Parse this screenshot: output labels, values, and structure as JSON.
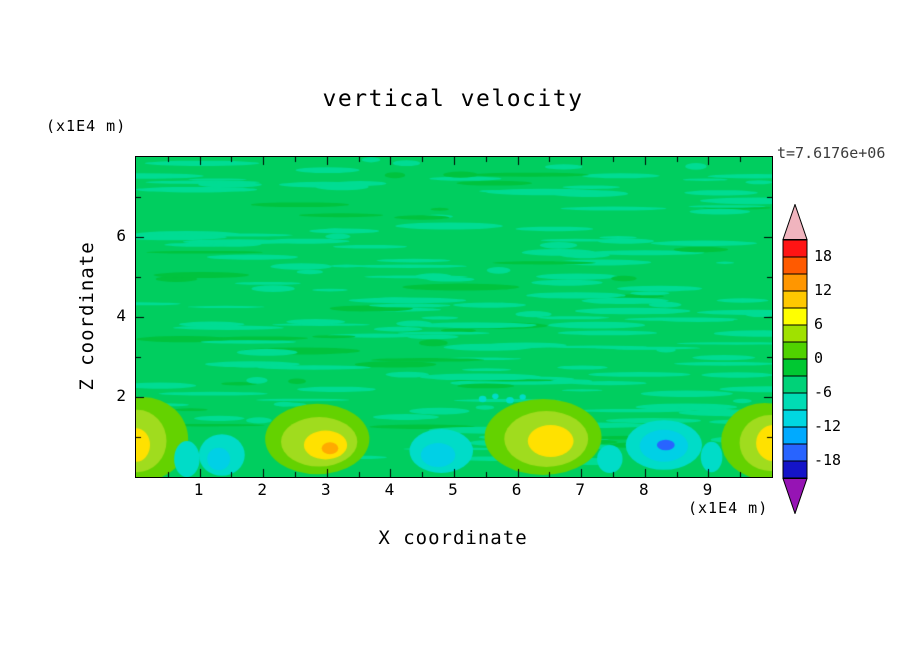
{
  "title": "vertical velocity",
  "time_label": "t=7.6176e+06",
  "axes": {
    "x_label": "X coordinate",
    "x_unit": "(x1E4 m)",
    "y_label": "Z coordinate",
    "y_unit": "(x1E4 m)",
    "x_ticks": [
      1,
      2,
      3,
      4,
      5,
      6,
      7,
      8,
      9
    ],
    "y_ticks": [
      2,
      4,
      6
    ]
  },
  "colorbar": {
    "labels": [
      "18",
      "12",
      "6",
      "0",
      "-6",
      "-12",
      "-18"
    ],
    "cell_colors_top_to_bottom": [
      "#ff1414",
      "#ff5a00",
      "#ff9600",
      "#ffc800",
      "#ffff00",
      "#a0e100",
      "#50d200",
      "#00c832",
      "#00d278",
      "#00dcb4",
      "#00d7e1",
      "#00aaff",
      "#2864ff",
      "#1414c8"
    ],
    "top_arrow_color": "#f0b4be",
    "bottom_arrow_color": "#9614b4",
    "cell_value_step": 3,
    "value_range": [
      -21,
      21
    ]
  },
  "chart_data": {
    "type": "heatmap",
    "title": "vertical velocity",
    "xlabel": "X coordinate (x1E4 m)",
    "ylabel": "Z coordinate (x1E4 m)",
    "time_annotation": "t=7.6176e+06",
    "x_range": [
      0,
      10
    ],
    "z_range": [
      0,
      8
    ],
    "contour_levels": [
      -21,
      -18,
      -15,
      -12,
      -9,
      -6,
      -3,
      0,
      3,
      6,
      9,
      12,
      15,
      18,
      21
    ],
    "palette_low_to_high": [
      "#1414c8",
      "#2864ff",
      "#00aaff",
      "#00d7e1",
      "#00dcb4",
      "#00d278",
      "#00c832",
      "#50d200",
      "#a0e100",
      "#ffff00",
      "#ffc800",
      "#ff9600",
      "#ff5a00",
      "#ff1414"
    ],
    "field_summary": "Mostly near-zero (green, -3 to +3) with fine horizontal streaky texture above z=2; below z=2 a convective boundary layer with updraft plumes (yellow-green/yellow, +3 to +9, orange core +9 to +12 near x=3) at x=0, 3, 6.5 and 9.9, and downdrafts (aquamarine/cyan, -3 to -9) at x=0.8, 1.3, 4.8, 7.5, 9.05 with a blue core near -15 at x=8.3",
    "texture": {
      "seed": 7,
      "count": 210,
      "base": "#00ce5f",
      "color": "#00dc93",
      "alt_color": "#00c33e"
    },
    "features": [
      {
        "x": 0.1,
        "z": 0.95,
        "rx": 0.72,
        "rz": 1.05,
        "color": "#64d200"
      },
      {
        "x": 0.02,
        "z": 0.9,
        "rx": 0.46,
        "rz": 0.78,
        "color": "#a0dc1e"
      },
      {
        "x": 0.0,
        "z": 0.8,
        "rx": 0.22,
        "rz": 0.42,
        "color": "#ffe100"
      },
      {
        "x": 0.8,
        "z": 0.45,
        "rx": 0.2,
        "rz": 0.45,
        "color": "#00dcc8"
      },
      {
        "x": 1.35,
        "z": 0.55,
        "rx": 0.36,
        "rz": 0.52,
        "color": "#00dcc8"
      },
      {
        "x": 1.3,
        "z": 0.45,
        "rx": 0.18,
        "rz": 0.28,
        "color": "#00d0e6"
      },
      {
        "x": 2.85,
        "z": 0.95,
        "rx": 0.82,
        "rz": 0.88,
        "color": "#64d200"
      },
      {
        "x": 2.88,
        "z": 0.88,
        "rx": 0.6,
        "rz": 0.62,
        "color": "#a0dc1e"
      },
      {
        "x": 2.98,
        "z": 0.8,
        "rx": 0.34,
        "rz": 0.36,
        "color": "#ffe100"
      },
      {
        "x": 3.05,
        "z": 0.72,
        "rx": 0.13,
        "rz": 0.15,
        "color": "#ffaa00"
      },
      {
        "x": 4.8,
        "z": 0.65,
        "rx": 0.5,
        "rz": 0.55,
        "color": "#00dcc8"
      },
      {
        "x": 4.75,
        "z": 0.55,
        "rx": 0.27,
        "rz": 0.3,
        "color": "#00d0e6"
      },
      {
        "x": 6.4,
        "z": 1.0,
        "rx": 0.92,
        "rz": 0.95,
        "color": "#64d200"
      },
      {
        "x": 6.45,
        "z": 0.95,
        "rx": 0.66,
        "rz": 0.7,
        "color": "#a0dc1e"
      },
      {
        "x": 6.52,
        "z": 0.9,
        "rx": 0.36,
        "rz": 0.4,
        "color": "#ffe100"
      },
      {
        "x": 7.45,
        "z": 0.45,
        "rx": 0.2,
        "rz": 0.35,
        "color": "#00dcc8"
      },
      {
        "x": 8.3,
        "z": 0.8,
        "rx": 0.6,
        "rz": 0.62,
        "color": "#00dcc8"
      },
      {
        "x": 8.3,
        "z": 0.78,
        "rx": 0.38,
        "rz": 0.4,
        "color": "#00d0e6"
      },
      {
        "x": 8.33,
        "z": 0.8,
        "rx": 0.14,
        "rz": 0.13,
        "color": "#2864ff"
      },
      {
        "x": 9.05,
        "z": 0.5,
        "rx": 0.17,
        "rz": 0.38,
        "color": "#00dcc8"
      },
      {
        "x": 9.88,
        "z": 0.9,
        "rx": 0.68,
        "rz": 0.95,
        "color": "#64d200"
      },
      {
        "x": 9.97,
        "z": 0.85,
        "rx": 0.48,
        "rz": 0.7,
        "color": "#a0dc1e"
      },
      {
        "x": 10.02,
        "z": 0.85,
        "rx": 0.27,
        "rz": 0.45,
        "color": "#ffe100"
      },
      {
        "x": 5.45,
        "z": 1.95,
        "rx": 0.06,
        "rz": 0.08,
        "color": "#00dcc8"
      },
      {
        "x": 5.65,
        "z": 2.02,
        "rx": 0.05,
        "rz": 0.07,
        "color": "#00dcc8"
      },
      {
        "x": 5.88,
        "z": 1.92,
        "rx": 0.06,
        "rz": 0.08,
        "color": "#00dcc8"
      },
      {
        "x": 6.08,
        "z": 2.0,
        "rx": 0.05,
        "rz": 0.07,
        "color": "#00dcc8"
      }
    ]
  }
}
